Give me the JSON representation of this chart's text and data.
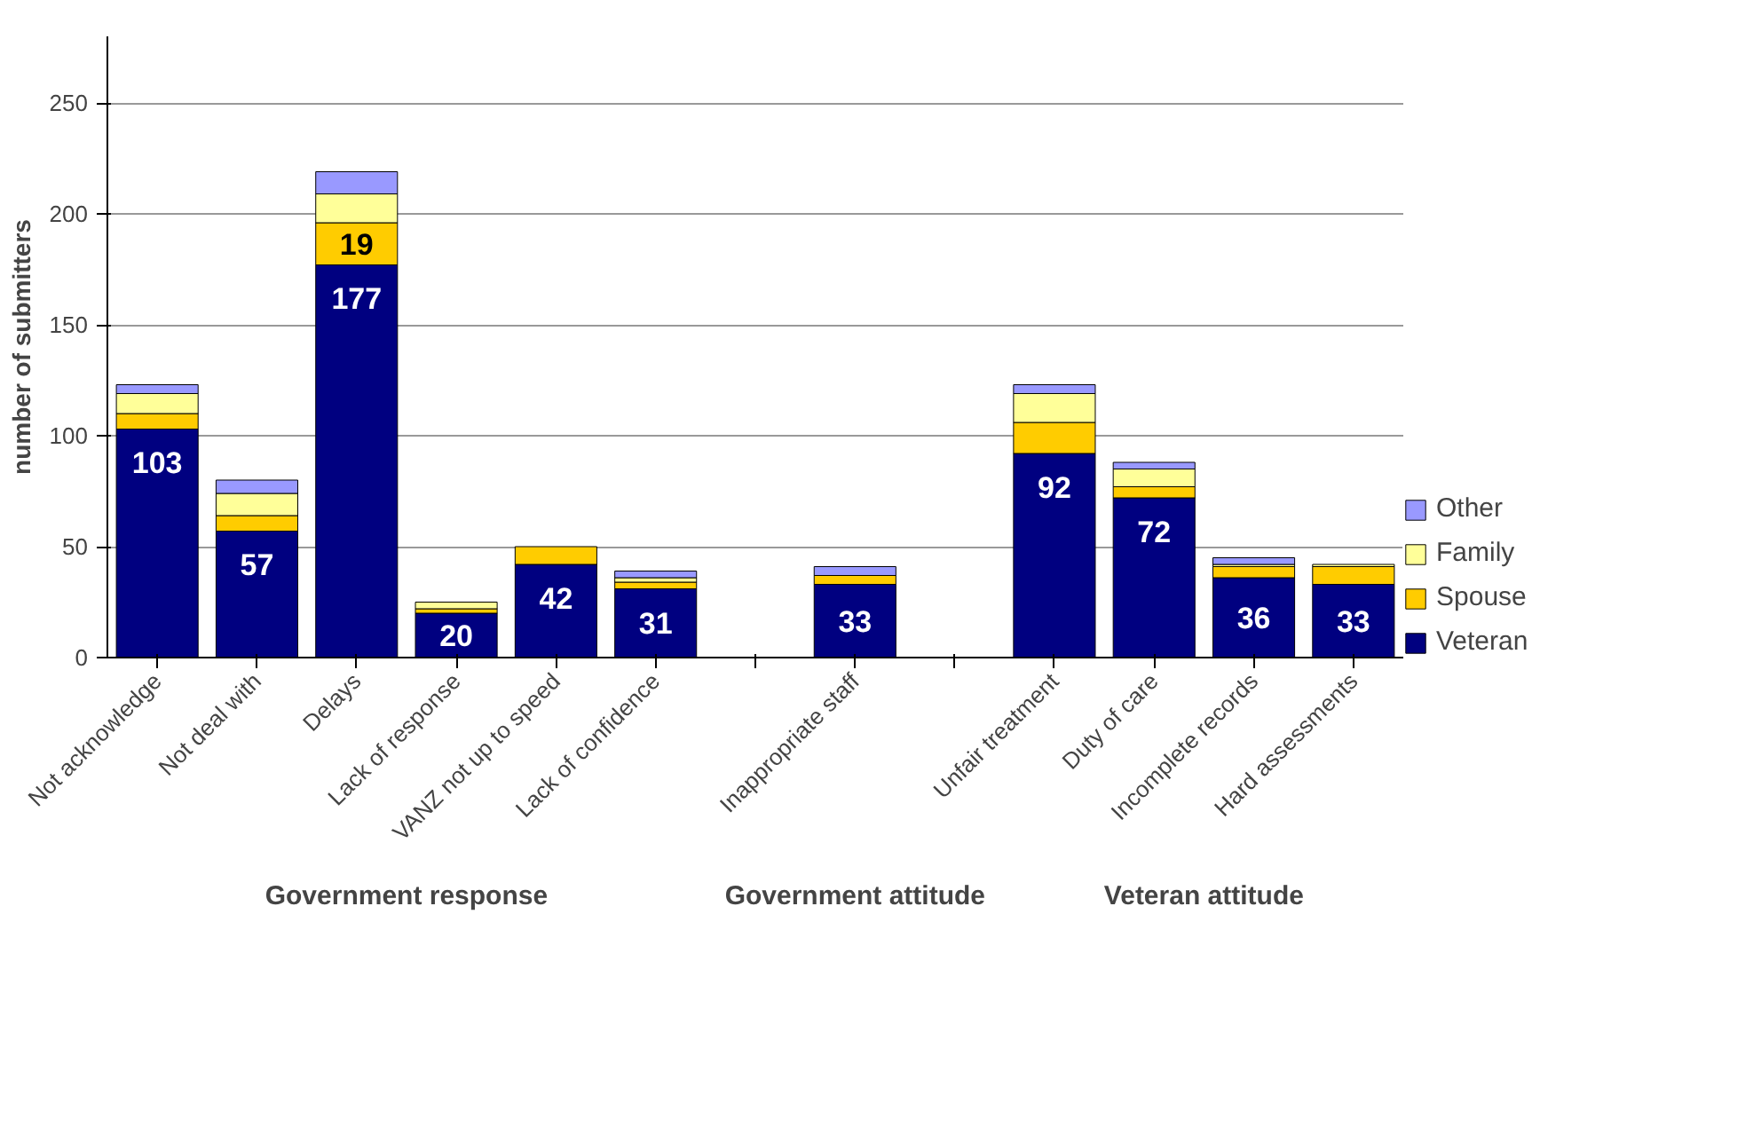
{
  "chart_data": {
    "type": "bar",
    "stacked": true,
    "ylabel": "number of submitters",
    "categories": [
      "Not acknowledge",
      "Not deal with",
      "Delays",
      "Lack of response",
      "VANZ not up to speed",
      "Lack of confidence",
      null,
      "Inappropriate staff",
      null,
      "Unfair treatment",
      "Duty of care",
      "Incomplete records",
      "Hard assessments"
    ],
    "series": [
      {
        "name": "Veteran",
        "color": "#000080",
        "values": [
          103,
          57,
          177,
          20,
          42,
          31,
          null,
          33,
          null,
          92,
          72,
          36,
          33
        ],
        "value_labels": [
          "103",
          "57",
          "177",
          "20",
          "42",
          "31",
          null,
          "33",
          null,
          "92",
          "72",
          "36",
          "33"
        ]
      },
      {
        "name": "Spouse",
        "color": "#ffcc00",
        "values": [
          7,
          7,
          19,
          2,
          8,
          3,
          null,
          4,
          null,
          14,
          5,
          5,
          8
        ],
        "value_labels": [
          null,
          null,
          "19",
          null,
          null,
          null,
          null,
          null,
          null,
          null,
          null,
          null,
          null
        ]
      },
      {
        "name": "Family",
        "color": "#ffff99",
        "values": [
          9,
          10,
          13,
          3,
          null,
          2,
          null,
          null,
          null,
          13,
          8,
          1,
          1
        ]
      },
      {
        "name": "Other",
        "color": "#9999ff",
        "values": [
          4,
          6,
          10,
          null,
          null,
          3,
          null,
          4,
          null,
          4,
          3,
          3,
          null
        ]
      }
    ],
    "ylim": [
      0,
      280
    ],
    "yticks": [
      0,
      50,
      100,
      150,
      200,
      250
    ],
    "grid": "y",
    "legend": "bottom right",
    "annotations": [
      "Government response",
      "Government attitude",
      "Veteran attitude"
    ]
  }
}
